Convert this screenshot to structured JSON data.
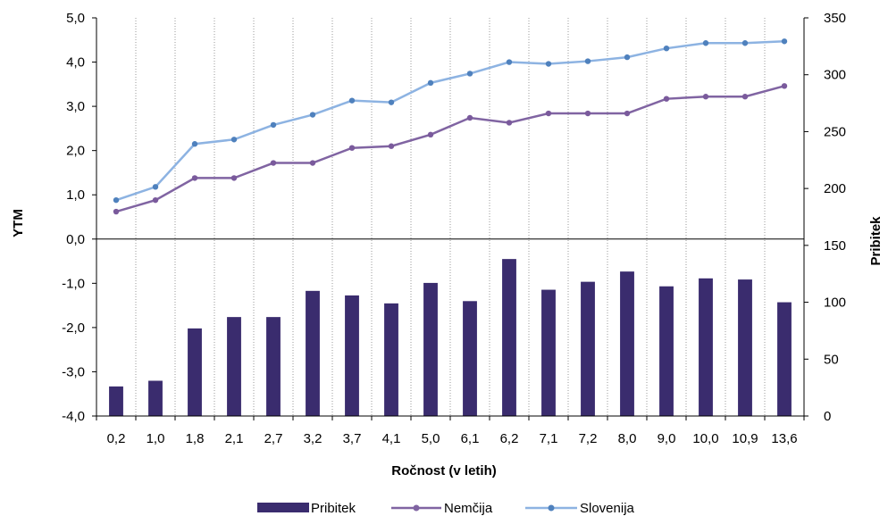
{
  "chart_data": {
    "type": "bar+line",
    "categories": [
      "0,2",
      "1,0",
      "1,8",
      "2,1",
      "2,7",
      "3,2",
      "3,7",
      "4,1",
      "5,0",
      "6,1",
      "6,2",
      "7,1",
      "7,2",
      "8,0",
      "9,0",
      "10,0",
      "10,9",
      "13,6"
    ],
    "xlabel": "Ročnost (v letih)",
    "ylabel_left": "YTM",
    "ylabel_right": "Pribitek",
    "left_axis": {
      "min": -4,
      "max": 5,
      "step": 1,
      "tick_labels": [
        "-4,0",
        "-3,0",
        "-2,0",
        "-1,0",
        "0,0",
        "1,0",
        "2,0",
        "3,0",
        "4,0",
        "5,0"
      ]
    },
    "right_axis": {
      "min": 0,
      "max": 350,
      "step": 50,
      "tick_labels": [
        "0",
        "50",
        "100",
        "150",
        "200",
        "250",
        "300",
        "350"
      ]
    },
    "grid": "vertical-dotted",
    "legend_position": "bottom",
    "series": [
      {
        "name": "Pribitek",
        "type": "bar",
        "axis": "right",
        "color": "#3a2c6e",
        "values": [
          26,
          31,
          77,
          87,
          87,
          110,
          106,
          99,
          117,
          101,
          138,
          111,
          118,
          127,
          114,
          121,
          120,
          100
        ]
      },
      {
        "name": "Nemčija",
        "type": "line",
        "axis": "left",
        "color": "#8064a2",
        "values": [
          0.62,
          0.88,
          1.38,
          1.38,
          1.72,
          1.72,
          2.06,
          2.1,
          2.36,
          2.74,
          2.63,
          2.84,
          2.84,
          2.84,
          3.17,
          3.22,
          3.22,
          3.46
        ]
      },
      {
        "name": "Slovenija",
        "type": "line",
        "axis": "left",
        "color": "#8db3e2",
        "values": [
          0.88,
          1.18,
          2.15,
          2.25,
          2.58,
          2.81,
          3.13,
          3.09,
          3.53,
          3.74,
          4.0,
          3.96,
          4.02,
          4.11,
          4.31,
          4.43,
          4.43,
          4.47
        ]
      }
    ]
  }
}
